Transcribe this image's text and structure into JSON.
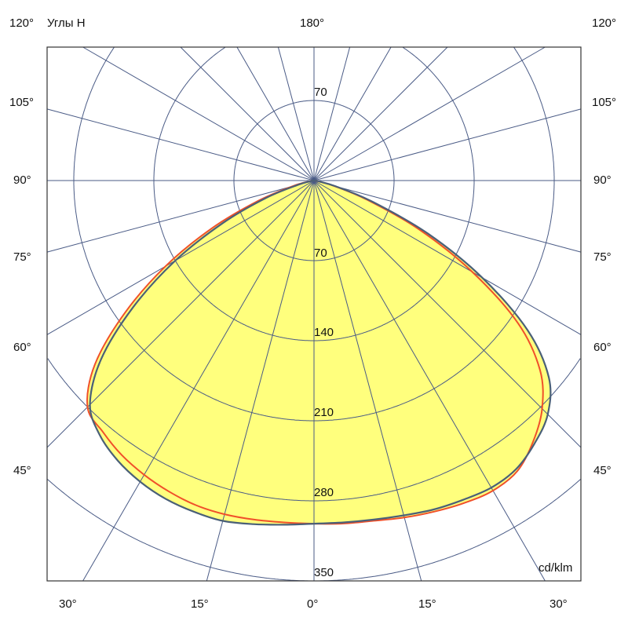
{
  "chart_data": {
    "type": "polar",
    "title": "",
    "axis_title": "Углы H",
    "unit_label": "cd/klm",
    "radial_max": 350,
    "rings": [
      70,
      140,
      210,
      280,
      350
    ],
    "ring_labels": {
      "top": "70",
      "r70": "70",
      "r140": "140",
      "r210": "210",
      "r280": "280",
      "r350": "350"
    },
    "angle_step_deg": 15,
    "angle_labels": {
      "top_center": "180°",
      "top_left": "120°",
      "top_right": "120°",
      "left": [
        "105°",
        "90°",
        "75°",
        "60°",
        "45°"
      ],
      "right": [
        "105°",
        "90°",
        "75°",
        "60°",
        "45°"
      ],
      "bottom": [
        "30°",
        "15°",
        "0°",
        "15°",
        "30°"
      ]
    },
    "colors": {
      "grid": "#4a5b86",
      "fill": "#ffff7d",
      "series_1": "#4a6078",
      "series_2": "#f0502a",
      "frame": "#333333"
    },
    "angles": [
      -90,
      -85,
      -80,
      -75,
      -70,
      -65,
      -60,
      -55,
      -50,
      -45,
      -40,
      -35,
      -30,
      -25,
      -20,
      -15,
      -10,
      -5,
      0,
      5,
      10,
      15,
      20,
      25,
      30,
      35,
      40,
      45,
      50,
      55,
      60,
      65,
      70,
      75,
      80,
      85,
      90
    ],
    "series": [
      {
        "values": [
          0,
          1,
          3,
          15,
          45,
          88,
          140,
          193,
          243,
          277,
          291,
          299,
          304,
          307,
          308,
          308,
          305,
          302,
          300,
          300,
          301,
          303,
          306,
          308,
          310,
          308,
          300,
          289,
          268,
          228,
          170,
          110,
          55,
          20,
          5,
          1,
          0
        ]
      },
      {
        "values": [
          0,
          1,
          5,
          20,
          52,
          98,
          150,
          202,
          250,
          280,
          287,
          293,
          297,
          300,
          302,
          302,
          301,
          300,
          300,
          301,
          302,
          305,
          308,
          311,
          313,
          310,
          298,
          282,
          258,
          218,
          160,
          102,
          50,
          18,
          4,
          1,
          0
        ]
      }
    ]
  }
}
